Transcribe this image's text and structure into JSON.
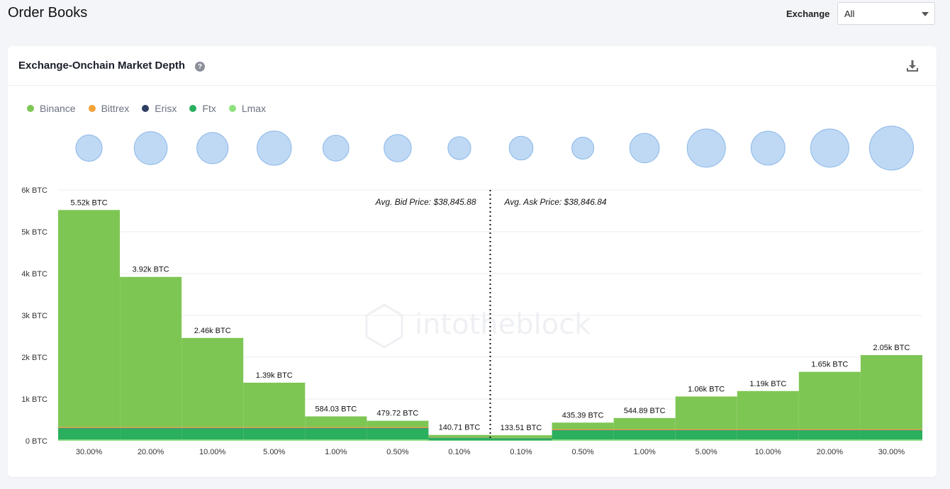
{
  "page": {
    "title": "Order Books",
    "exchange_label": "Exchange",
    "exchange_value": "All"
  },
  "card": {
    "title": "Exchange-Onchain Market Depth",
    "help_icon": "question-circle-icon",
    "download_icon": "download-icon"
  },
  "legend": [
    {
      "name": "Binance",
      "color": "#7ec654"
    },
    {
      "name": "Bittrex",
      "color": "#f3a33a"
    },
    {
      "name": "Erisx",
      "color": "#2f3f63"
    },
    {
      "name": "Ftx",
      "color": "#2aaf5e"
    },
    {
      "name": "Lmax",
      "color": "#8ee17d"
    }
  ],
  "chart_data": {
    "type": "bar",
    "categories": [
      "30.00%",
      "20.00%",
      "10.00%",
      "5.00%",
      "1.00%",
      "0.50%",
      "0.10%",
      "0.10%",
      "0.50%",
      "1.00%",
      "5.00%",
      "10.00%",
      "20.00%",
      "30.00%"
    ],
    "side": [
      "bid",
      "bid",
      "bid",
      "bid",
      "bid",
      "bid",
      "bid",
      "ask",
      "ask",
      "ask",
      "ask",
      "ask",
      "ask",
      "ask"
    ],
    "totals": [
      5520,
      3920,
      2460,
      1390,
      584.03,
      479.72,
      140.71,
      133.51,
      435.39,
      544.89,
      1060,
      1190,
      1650,
      2050
    ],
    "value_labels": [
      "5.52k BTC",
      "3.92k BTC",
      "2.46k BTC",
      "1.39k BTC",
      "584.03 BTC",
      "479.72 BTC",
      "140.71 BTC",
      "133.51 BTC",
      "435.39 BTC",
      "544.89 BTC",
      "1.06k BTC",
      "1.19k BTC",
      "1.65k BTC",
      "2.05k BTC"
    ],
    "series": [
      {
        "name": "Lmax",
        "color": "#8ee17d",
        "values": [
          30,
          30,
          30,
          30,
          30,
          30,
          10,
          10,
          30,
          30,
          30,
          30,
          30,
          30
        ]
      },
      {
        "name": "Ftx",
        "color": "#2aaf5e",
        "values": [
          270,
          270,
          270,
          270,
          270,
          270,
          60,
          50,
          220,
          220,
          220,
          220,
          220,
          220
        ]
      },
      {
        "name": "Erisx",
        "color": "#2f3f63",
        "values": [
          10,
          10,
          10,
          10,
          10,
          10,
          5,
          5,
          10,
          10,
          10,
          10,
          10,
          10
        ]
      },
      {
        "name": "Bittrex",
        "color": "#f3a33a",
        "values": [
          20,
          20,
          20,
          20,
          20,
          20,
          5,
          5,
          20,
          20,
          20,
          20,
          20,
          20
        ]
      },
      {
        "name": "Binance",
        "color": "#7ec654",
        "values": [
          5190,
          3590,
          2130,
          1060,
          254.03,
          149.72,
          60.71,
          63.51,
          155.39,
          264.89,
          780,
          910,
          1370,
          1770
        ]
      }
    ],
    "bubbles": [
      {
        "category": "30.00%",
        "size": 0.6
      },
      {
        "category": "20.00%",
        "size": 0.75
      },
      {
        "category": "10.00%",
        "size": 0.71
      },
      {
        "category": "5.00%",
        "size": 0.78
      },
      {
        "category": "1.00%",
        "size": 0.59
      },
      {
        "category": "0.50%",
        "size": 0.62
      },
      {
        "category": "0.10%",
        "size": 0.52
      },
      {
        "category": "0.10%",
        "size": 0.54
      },
      {
        "category": "0.50%",
        "size": 0.5
      },
      {
        "category": "1.00%",
        "size": 0.67
      },
      {
        "category": "5.00%",
        "size": 0.87
      },
      {
        "category": "10.00%",
        "size": 0.77
      },
      {
        "category": "20.00%",
        "size": 0.87
      },
      {
        "category": "30.00%",
        "size": 1.0
      }
    ],
    "y_ticks": [
      0,
      1000,
      2000,
      3000,
      4000,
      5000,
      6000
    ],
    "y_tick_labels": [
      "0 BTC",
      "1k BTC",
      "2k BTC",
      "3k BTC",
      "4k BTC",
      "5k BTC",
      "6k BTC"
    ],
    "ylim": [
      0,
      6000
    ],
    "avg_bid_label": "Avg. Bid Price: $38,845.88",
    "avg_ask_label": "Avg. Ask Price: $38,846.84",
    "watermark": "intotheblock",
    "grid": true,
    "legend_position": "top-left"
  }
}
